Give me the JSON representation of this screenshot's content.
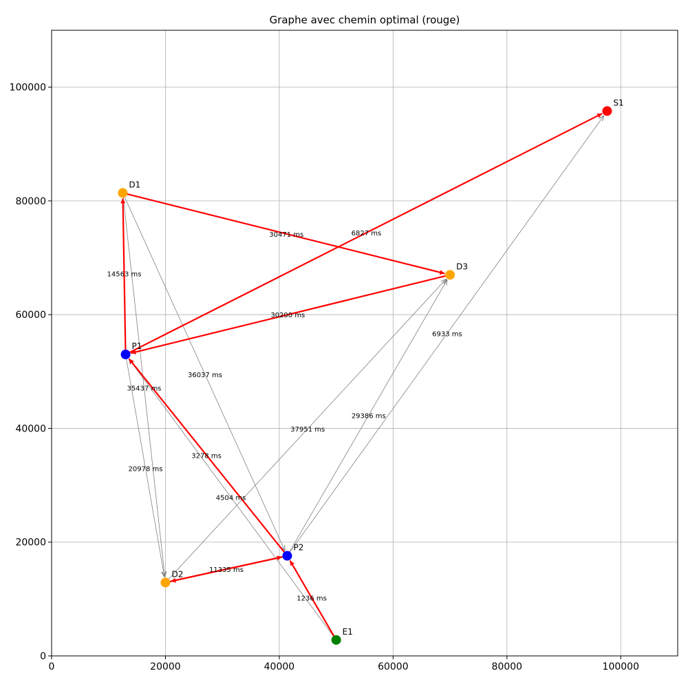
{
  "chart_data": {
    "type": "scatter",
    "title": "Graphe avec chemin optimal (rouge)",
    "xlabel": "",
    "ylabel": "",
    "xlim": [
      0,
      110000
    ],
    "ylim": [
      0,
      110000
    ],
    "grid": true,
    "x_ticks": [
      {
        "value": 0,
        "label": "0"
      },
      {
        "value": 20000,
        "label": "20000"
      },
      {
        "value": 40000,
        "label": "40000"
      },
      {
        "value": 60000,
        "label": "60000"
      },
      {
        "value": 80000,
        "label": "80000"
      },
      {
        "value": 100000,
        "label": "100000"
      }
    ],
    "y_ticks": [
      {
        "value": 0,
        "label": "0"
      },
      {
        "value": 20000,
        "label": "20000"
      },
      {
        "value": 40000,
        "label": "40000"
      },
      {
        "value": 60000,
        "label": "60000"
      },
      {
        "value": 80000,
        "label": "80000"
      },
      {
        "value": 100000,
        "label": "100000"
      }
    ],
    "nodes": [
      {
        "id": "E1",
        "label": "E1",
        "x": 50000,
        "y": 2800,
        "color": "#008000"
      },
      {
        "id": "P2",
        "label": "P2",
        "x": 41400,
        "y": 17600,
        "color": "#0000ff"
      },
      {
        "id": "D2",
        "label": "D2",
        "x": 20000,
        "y": 12900,
        "color": "#ffa500"
      },
      {
        "id": "P1",
        "label": "P1",
        "x": 13000,
        "y": 53000,
        "color": "#0000ff"
      },
      {
        "id": "D1",
        "label": "D1",
        "x": 12500,
        "y": 81400,
        "color": "#ffa500"
      },
      {
        "id": "D3",
        "label": "D3",
        "x": 70000,
        "y": 67000,
        "color": "#ffa500"
      },
      {
        "id": "S1",
        "label": "S1",
        "x": 97600,
        "y": 95800,
        "color": "#ff0000"
      }
    ],
    "edges": [
      {
        "from": "P1",
        "to": "D2",
        "label": "20978 ms",
        "optimal": false
      },
      {
        "from": "D1",
        "to": "D2",
        "label": "35437 ms",
        "optimal": false
      },
      {
        "from": "D1",
        "to": "P2",
        "label": "36037 ms",
        "optimal": false
      },
      {
        "from": "D2",
        "to": "D3",
        "label": "37951 ms",
        "optimal": false
      },
      {
        "from": "P2",
        "to": "D3",
        "label": "29386 ms",
        "optimal": false
      },
      {
        "from": "P2",
        "to": "S1",
        "label": "6933 ms",
        "optimal": false
      },
      {
        "from": "E1",
        "to": "P1",
        "label": "4504 ms",
        "optimal": false
      },
      {
        "from": "E1",
        "to": "P2",
        "label": "1236 ms",
        "optimal": true
      },
      {
        "from": "P2",
        "to": "D2",
        "label": "11335 ms",
        "optimal": true
      },
      {
        "from": "D2",
        "to": "P2",
        "label": "",
        "optimal": true
      },
      {
        "from": "P2",
        "to": "P1",
        "label": "3278 ms",
        "optimal": true
      },
      {
        "from": "P1",
        "to": "D1",
        "label": "14563 ms",
        "optimal": true
      },
      {
        "from": "D1",
        "to": "D3",
        "label": "30471 ms",
        "optimal": true
      },
      {
        "from": "D3",
        "to": "P1",
        "label": "30200 ms",
        "optimal": true
      },
      {
        "from": "P1",
        "to": "S1",
        "label": "6827 ms",
        "optimal": true
      }
    ],
    "colors": {
      "optimal_edge": "#ff0000",
      "edge": "#808080",
      "grid": "#b0b0b0"
    }
  }
}
